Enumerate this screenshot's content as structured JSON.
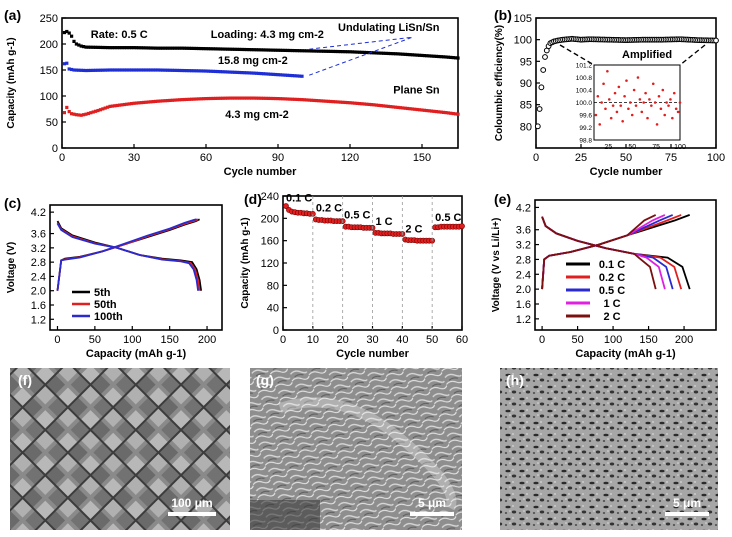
{
  "chart_data": [
    {
      "panel": "a",
      "panel_label": "(a)",
      "type": "scatter",
      "xlabel": "Cycle number",
      "ylabel": "Capacity (mAh g-1)",
      "xlim": [
        0,
        165
      ],
      "ylim": [
        0,
        250
      ],
      "xticks": [
        0,
        30,
        60,
        90,
        120,
        150
      ],
      "yticks": [
        0,
        50,
        100,
        150,
        200,
        250
      ],
      "annotations": [
        "Rate: 0.5 C",
        "Loading: 4.3 mg cm-2",
        "Undulating LiSn/Sn",
        "15.8 mg cm-2",
        "Plane Sn",
        "4.3 mg cm-2"
      ],
      "series": [
        {
          "name": "Undulating LiSn/Sn 4.3 mg cm-2",
          "color": "#000000",
          "x": [
            1,
            2,
            3,
            4,
            5,
            6,
            8,
            10,
            20,
            30,
            40,
            50,
            60,
            70,
            80,
            90,
            100,
            110,
            120,
            130,
            140,
            150,
            160,
            165
          ],
          "y": [
            222,
            224,
            221,
            215,
            205,
            200,
            196,
            194,
            193,
            193,
            192,
            192,
            191,
            190,
            189,
            188,
            187,
            186,
            185,
            183,
            181,
            178,
            175,
            173
          ]
        },
        {
          "name": "Undulating LiSn/Sn 15.8 mg cm-2",
          "color": "#1f2fd6",
          "x": [
            1,
            2,
            3,
            5,
            10,
            20,
            30,
            40,
            50,
            60,
            70,
            80,
            90,
            100
          ],
          "y": [
            162,
            163,
            152,
            150,
            149,
            150,
            150,
            150,
            149,
            148,
            146,
            144,
            141,
            138
          ]
        },
        {
          "name": "Plane Sn 4.3 mg cm-2",
          "color": "#e02020",
          "x": [
            1,
            2,
            3,
            4,
            6,
            8,
            10,
            15,
            20,
            30,
            40,
            50,
            60,
            70,
            80,
            90,
            100,
            110,
            120,
            130,
            140,
            150,
            160,
            165
          ],
          "y": [
            68,
            78,
            70,
            66,
            64,
            63,
            65,
            72,
            80,
            86,
            90,
            93,
            95,
            96,
            96,
            95,
            93,
            90,
            87,
            83,
            78,
            73,
            68,
            65
          ]
        }
      ]
    },
    {
      "panel": "b",
      "panel_label": "(b)",
      "type": "scatter",
      "xlabel": "Cycle number",
      "ylabel": "Coloumbic efficiency(%)",
      "xlim": [
        0,
        100
      ],
      "ylim": [
        75,
        105
      ],
      "xticks": [
        0,
        25,
        50,
        75,
        100
      ],
      "yticks": [
        80,
        85,
        90,
        95,
        100,
        105
      ],
      "annotations": [
        "Amplified"
      ],
      "series": [
        {
          "name": "",
          "color": "#000000",
          "x": [
            1,
            2,
            3,
            4,
            5,
            6,
            7,
            8,
            10,
            12,
            15,
            20,
            25,
            30,
            40,
            50,
            60,
            70,
            80,
            90,
            100
          ],
          "y": [
            80,
            84,
            89,
            93,
            96,
            97.5,
            98.5,
            99.2,
            99.6,
            99.8,
            100,
            100.2,
            100,
            100.1,
            100,
            99.9,
            100,
            100,
            100.1,
            99.9,
            99.8
          ]
        }
      ],
      "inset": {
        "xlim": [
          10,
          100
        ],
        "ylim": [
          98.8,
          101.2
        ],
        "xticks": [
          25,
          50,
          75,
          100
        ],
        "yticks": [
          98.8,
          99.2,
          99.6,
          100.0,
          100.4,
          100.8,
          101.2
        ],
        "reference_line": 100.0,
        "series": [
          {
            "name": "",
            "color": "#e02020",
            "x": [
              12,
              14,
              16,
              18,
              20,
              22,
              24,
              26,
              28,
              30,
              32,
              34,
              36,
              38,
              40,
              42,
              44,
              46,
              48,
              50,
              52,
              54,
              56,
              58,
              60,
              62,
              64,
              66,
              68,
              70,
              72,
              74,
              76,
              78,
              80,
              82,
              84,
              86,
              88,
              90,
              92,
              94,
              96,
              98,
              100
            ],
            "y": [
              99.6,
              100.2,
              99.3,
              100.0,
              100.6,
              99.8,
              101.0,
              100.1,
              99.5,
              99.9,
              100.3,
              99.7,
              100.5,
              99.9,
              99.4,
              100.2,
              100.7,
              99.8,
              100.0,
              99.6,
              100.4,
              99.9,
              100.8,
              100.1,
              99.7,
              100.0,
              100.3,
              99.5,
              100.1,
              99.9,
              100.6,
              100.0,
              99.3,
              100.2,
              99.8,
              100.4,
              99.6,
              100.0,
              99.9,
              100.1,
              99.5,
              100.3,
              99.8,
              99.7,
              100.0
            ]
          }
        ]
      }
    },
    {
      "panel": "c",
      "panel_label": "(c)",
      "type": "line",
      "xlabel": "Capacity (mAh g-1)",
      "ylabel": "Voltage (V)",
      "xlim": [
        -10,
        220
      ],
      "ylim": [
        0.9,
        4.4
      ],
      "xticks": [
        0,
        50,
        100,
        150,
        200
      ],
      "yticks": [
        1.2,
        1.6,
        2.0,
        2.4,
        2.8,
        3.2,
        3.6,
        4.2
      ],
      "series": [
        {
          "name": "5th",
          "color": "#000000",
          "charge": {
            "x": [
              0,
              5,
              10,
              30,
              60,
              90,
              120,
              150,
              170,
              185,
              190
            ],
            "y": [
              2.0,
              2.85,
              2.9,
              2.95,
              3.1,
              3.3,
              3.5,
              3.7,
              3.85,
              3.95,
              4.0
            ]
          },
          "discharge": {
            "x": [
              0,
              5,
              20,
              50,
              80,
              110,
              140,
              165,
              180,
              186,
              190,
              192
            ],
            "y": [
              3.95,
              3.75,
              3.55,
              3.35,
              3.2,
              3.0,
              2.9,
              2.85,
              2.8,
              2.6,
              2.3,
              2.0
            ]
          }
        },
        {
          "name": "50th",
          "color": "#e02020",
          "charge": {
            "x": [
              0,
              5,
              10,
              30,
              60,
              90,
              120,
              150,
              170,
              185,
              188
            ],
            "y": [
              2.0,
              2.85,
              2.88,
              2.94,
              3.1,
              3.3,
              3.52,
              3.72,
              3.87,
              3.97,
              4.0
            ]
          },
          "discharge": {
            "x": [
              0,
              5,
              20,
              50,
              80,
              110,
              140,
              165,
              178,
              184,
              188,
              190
            ],
            "y": [
              3.9,
              3.72,
              3.52,
              3.33,
              3.2,
              3.0,
              2.88,
              2.83,
              2.78,
              2.6,
              2.3,
              2.0
            ]
          }
        },
        {
          "name": "100th",
          "color": "#2a2ad0",
          "charge": {
            "x": [
              0,
              5,
              10,
              30,
              60,
              90,
              120,
              150,
              170,
              182,
              186
            ],
            "y": [
              2.0,
              2.85,
              2.87,
              2.93,
              3.1,
              3.32,
              3.54,
              3.74,
              3.9,
              3.98,
              4.0
            ]
          },
          "discharge": {
            "x": [
              0,
              5,
              20,
              50,
              80,
              110,
              140,
              165,
              176,
              182,
              186,
              188
            ],
            "y": [
              3.88,
              3.7,
              3.5,
              3.32,
              3.2,
              3.0,
              2.87,
              2.82,
              2.77,
              2.6,
              2.3,
              2.0
            ]
          }
        }
      ]
    },
    {
      "panel": "d",
      "panel_label": "(d)",
      "type": "scatter",
      "xlabel": "Cycle number",
      "ylabel": "Capacity (mAh g-1)",
      "xlim": [
        0,
        60
      ],
      "ylim": [
        0,
        240
      ],
      "xticks": [
        0,
        10,
        20,
        30,
        40,
        50,
        60
      ],
      "yticks": [
        0,
        40,
        80,
        120,
        160,
        200,
        240
      ],
      "rate_labels": [
        "0.1 C",
        "0.2 C",
        "0.5 C",
        "1 C",
        "2 C",
        "0.5 C"
      ],
      "segment_boundaries": [
        10,
        20,
        30,
        40,
        50
      ],
      "series": [
        {
          "name": "",
          "color": "#e02020",
          "x": [
            1,
            2,
            3,
            4,
            5,
            6,
            7,
            8,
            9,
            10,
            11,
            12,
            13,
            14,
            15,
            16,
            17,
            18,
            19,
            20,
            21,
            22,
            23,
            24,
            25,
            26,
            27,
            28,
            29,
            30,
            31,
            32,
            33,
            34,
            35,
            36,
            37,
            38,
            39,
            40,
            41,
            42,
            43,
            44,
            45,
            46,
            47,
            48,
            49,
            50,
            51,
            52,
            53,
            54,
            55,
            56,
            57,
            58,
            59,
            60
          ],
          "y": [
            222,
            215,
            212,
            211,
            210,
            210,
            209,
            209,
            208,
            208,
            198,
            197,
            197,
            196,
            196,
            196,
            195,
            195,
            195,
            195,
            185,
            185,
            184,
            184,
            184,
            184,
            183,
            183,
            183,
            183,
            174,
            174,
            173,
            173,
            173,
            173,
            172,
            172,
            172,
            172,
            162,
            161,
            161,
            161,
            160,
            160,
            160,
            160,
            160,
            160,
            184,
            184,
            185,
            185,
            185,
            185,
            185,
            185,
            185,
            186
          ]
        }
      ]
    },
    {
      "panel": "e",
      "panel_label": "(e)",
      "type": "line",
      "xlabel": "Capacity (mAh g-1)",
      "ylabel": "Voltage (V vs Li/Li+)",
      "xlim": [
        -10,
        245
      ],
      "ylim": [
        0.9,
        4.4
      ],
      "xticks": [
        0,
        50,
        100,
        150,
        200
      ],
      "yticks": [
        1.2,
        1.6,
        2.0,
        2.4,
        2.8,
        3.2,
        3.6,
        4.2
      ],
      "series": [
        {
          "name": "0.1 C",
          "color": "#000000",
          "capacity": 208
        },
        {
          "name": "0.2 C",
          "color": "#e02020",
          "capacity": 196
        },
        {
          "name": "0.5 C",
          "color": "#2a2ad0",
          "capacity": 184
        },
        {
          "name": "1 C",
          "color": "#e020e0",
          "capacity": 173
        },
        {
          "name": "2 C",
          "color": "#7a1010",
          "capacity": 160
        }
      ]
    }
  ],
  "images": [
    {
      "panel": "f",
      "panel_label": "(f)",
      "scale_bar": "100 μm",
      "texture": "woven-grid"
    },
    {
      "panel": "g",
      "panel_label": "(g)",
      "scale_bar": "5 μm",
      "texture": "flakes"
    },
    {
      "panel": "h",
      "panel_label": "(h)",
      "scale_bar": "5 μm",
      "texture": "porous"
    }
  ]
}
